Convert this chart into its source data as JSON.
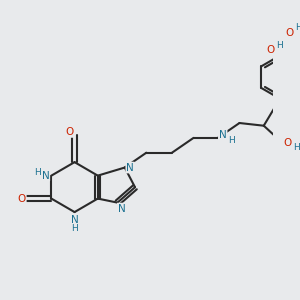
{
  "background_color": "#e8eaec",
  "bond_color": "#2a2a2a",
  "nitrogen_color": "#1a7090",
  "oxygen_color": "#cc2200",
  "carbon_color": "#2a2a2a",
  "line_width": 1.5,
  "font_size": 7.5,
  "fig_width": 3.0,
  "fig_height": 3.0,
  "dpi": 100,
  "xlim": [
    0,
    10
  ],
  "ylim": [
    0,
    10
  ]
}
